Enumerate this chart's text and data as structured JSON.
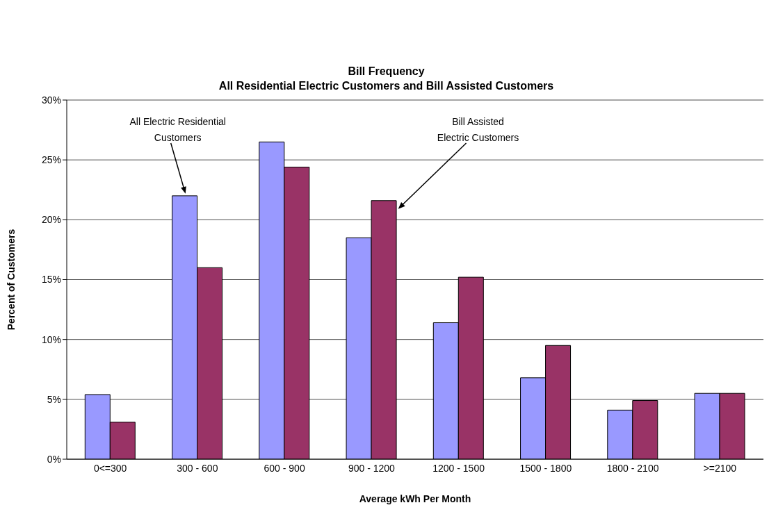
{
  "chart_data": {
    "type": "bar",
    "title": "Bill Frequency",
    "subtitle": "All Residential Electric Customers and Bill Assisted Customers",
    "xlabel": "Average kWh Per Month",
    "ylabel": "Percent of Customers",
    "categories": [
      "0<=300",
      "300 - 600",
      "600 - 900",
      "900 - 1200",
      "1200 - 1500",
      "1500 - 1800",
      "1800 - 2100",
      ">=2100"
    ],
    "series": [
      {
        "color": "#9999ff",
        "values": [
          5.4,
          22.0,
          26.5,
          18.5,
          11.4,
          6.8,
          4.1,
          5.5
        ]
      },
      {
        "color": "#993366",
        "values": [
          3.1,
          16.0,
          24.4,
          21.6,
          15.2,
          9.5,
          4.9,
          5.5
        ]
      }
    ],
    "ylim": [
      0,
      30
    ],
    "yticks": [
      {
        "value": 0,
        "label": "0%"
      },
      {
        "value": 5,
        "label": "5%"
      },
      {
        "value": 10,
        "label": "10%"
      },
      {
        "value": 15,
        "label": "15%"
      },
      {
        "value": 20,
        "label": "20%"
      },
      {
        "value": 25,
        "label": "25%"
      },
      {
        "value": 30,
        "label": "30%"
      }
    ],
    "grid": "y",
    "legend": false,
    "annotations": [
      "All Electric Residential Customers",
      "Bill Assisted Electric Customers"
    ]
  }
}
